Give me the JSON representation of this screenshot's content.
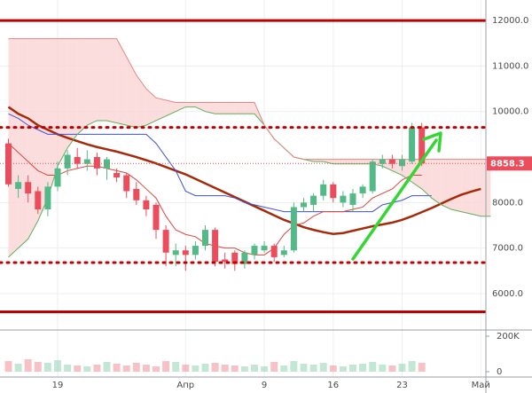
{
  "chart_data": {
    "type": "candlestick",
    "categories": [
      null,
      null,
      null,
      null,
      null,
      "19",
      null,
      null,
      null,
      null,
      null,
      null,
      null,
      null,
      null,
      null,
      null,
      null,
      "Апр",
      null,
      null,
      null,
      null,
      null,
      null,
      null,
      "9",
      null,
      null,
      null,
      null,
      null,
      null,
      "16",
      null,
      null,
      null,
      null,
      null,
      null,
      "23",
      null,
      null,
      null,
      null,
      null,
      null,
      null,
      "Май",
      null
    ],
    "open": [
      9300,
      8300,
      8450,
      8250,
      7850,
      8350,
      8750,
      9000,
      8850,
      9000,
      8750,
      8650,
      8600,
      8300,
      8050,
      7950,
      7400,
      6850,
      6950,
      6850,
      7050,
      7400,
      6750,
      6900,
      6650,
      6850,
      6950,
      7050,
      6850,
      6950,
      7900,
      7950,
      8150,
      8400,
      8000,
      7950,
      8200,
      8250,
      8850,
      8950,
      8800,
      8900,
      9650,
      null,
      null,
      null,
      null,
      null,
      null,
      null
    ],
    "high": [
      9400,
      8600,
      8600,
      8350,
      8450,
      8900,
      9150,
      9200,
      9150,
      9100,
      9000,
      8750,
      8650,
      8450,
      8150,
      8000,
      7500,
      7100,
      7050,
      7150,
      7500,
      7450,
      6900,
      6950,
      6950,
      7100,
      7150,
      7100,
      7050,
      8000,
      8100,
      8200,
      8500,
      8450,
      8250,
      8300,
      8400,
      8950,
      9050,
      9050,
      9050,
      9750,
      9750,
      null,
      null,
      null,
      null,
      null,
      null,
      null
    ],
    "low": [
      8350,
      8100,
      8000,
      7750,
      7700,
      8250,
      8600,
      8750,
      8700,
      8600,
      8500,
      8450,
      8100,
      7950,
      7700,
      7200,
      6600,
      6600,
      6500,
      6750,
      6950,
      6600,
      6550,
      6500,
      6550,
      6750,
      6900,
      6700,
      6800,
      6900,
      7800,
      7800,
      8050,
      8000,
      7900,
      7800,
      8100,
      8200,
      8750,
      8750,
      8700,
      8850,
      8800,
      null,
      null,
      null,
      null,
      null,
      null,
      null
    ],
    "close": [
      8400,
      8450,
      8200,
      7850,
      8350,
      8750,
      9050,
      8850,
      8950,
      8750,
      8950,
      8550,
      8250,
      8050,
      7850,
      7400,
      6900,
      6950,
      6850,
      7050,
      7400,
      6700,
      6700,
      6650,
      6900,
      7050,
      7050,
      6800,
      6950,
      7900,
      8000,
      8150,
      8400,
      8100,
      8150,
      8200,
      8350,
      8900,
      8950,
      8850,
      8950,
      9650,
      8860,
      null,
      null,
      null,
      null,
      null,
      null,
      null
    ],
    "up_color": "#53b987",
    "down_color": "#eb4d5c",
    "volume": [
      60000,
      45000,
      70000,
      55000,
      50000,
      65000,
      40000,
      35000,
      30000,
      40000,
      55000,
      45000,
      35000,
      50000,
      40000,
      30000,
      60000,
      55000,
      40000,
      35000,
      45000,
      50000,
      40000,
      35000,
      30000,
      40000,
      30000,
      55000,
      35000,
      60000,
      45000,
      40000,
      50000,
      35000,
      30000,
      40000,
      45000,
      55000,
      40000,
      35000,
      45000,
      60000,
      50000,
      null,
      null,
      null,
      null,
      null,
      null,
      null
    ],
    "vol_ylim": [
      0,
      215000
    ],
    "vol_yticks": [
      {
        "value": 200000,
        "label": "200K"
      },
      0
    ],
    "series": [
      {
        "color": "#a52a0a",
        "width": 2.5,
        "values": [
          10100,
          9950,
          9850,
          9700,
          9600,
          9500,
          9420,
          9350,
          9280,
          9220,
          9170,
          9120,
          9060,
          9000,
          8930,
          8860,
          8780,
          8700,
          8620,
          8520,
          8420,
          8320,
          8220,
          8120,
          8020,
          7920,
          7820,
          7720,
          7620,
          7540,
          7460,
          7400,
          7350,
          7310,
          7330,
          7380,
          7430,
          7480,
          7520,
          7560,
          7620,
          7700,
          7790,
          7880,
          7980,
          8080,
          8170,
          8240,
          8300,
          null
        ]
      },
      {
        "color": "#3f51d6",
        "width": 1,
        "values": [
          9950,
          9850,
          9700,
          9600,
          9500,
          9500,
          9500,
          9500,
          9500,
          9500,
          9500,
          9500,
          9500,
          9500,
          9500,
          9300,
          9000,
          8700,
          8250,
          8150,
          8150,
          8150,
          8150,
          8100,
          8000,
          7950,
          7900,
          7850,
          7800,
          7800,
          7800,
          7800,
          7800,
          7800,
          7800,
          7800,
          7800,
          7800,
          7950,
          8000,
          8050,
          8150,
          8150,
          8150,
          null,
          null,
          null,
          null,
          null,
          null
        ]
      },
      {
        "color": "#e0443c",
        "width": 1,
        "values": [
          9300,
          9100,
          8900,
          8700,
          8600,
          8600,
          8700,
          8750,
          8800,
          8800,
          8750,
          8700,
          8650,
          8500,
          8300,
          8100,
          7700,
          7400,
          7300,
          7250,
          7100,
          7050,
          7000,
          7000,
          6900,
          6850,
          6850,
          7000,
          7300,
          7500,
          7550,
          7700,
          7800,
          7800,
          7800,
          7850,
          7900,
          8100,
          8200,
          8300,
          8500,
          8600,
          8600,
          null,
          null,
          null,
          null,
          null,
          null,
          null
        ]
      },
      {
        "color": "#5fae5a",
        "width": 1,
        "cloud": "a",
        "values": [
          6800,
          7000,
          7200,
          7600,
          8100,
          8800,
          9200,
          9500,
          9700,
          9800,
          9800,
          9750,
          9700,
          9650,
          9700,
          9800,
          9900,
          10000,
          10100,
          10100,
          10000,
          9950,
          9950,
          9950,
          9950,
          9950,
          9700,
          9400,
          9200,
          9000,
          8950,
          8900,
          8900,
          8850,
          8850,
          8850,
          8850,
          8850,
          8800,
          8700,
          8600,
          8450,
          8300,
          8100,
          7950,
          7850,
          7800,
          7750,
          7700,
          7700
        ]
      },
      {
        "color": "#e8857e",
        "width": 1,
        "cloud": "b",
        "values": [
          11600,
          11600,
          11600,
          11600,
          11600,
          11600,
          11600,
          11600,
          11600,
          11600,
          11600,
          11600,
          11200,
          10800,
          10500,
          10300,
          10250,
          10200,
          10200,
          10200,
          10200,
          10200,
          10200,
          10200,
          10200,
          10200,
          9700,
          9400,
          9200,
          9000,
          8950,
          8950,
          8950,
          8950,
          8950,
          8950,
          8950,
          8950,
          8950,
          8950,
          8950,
          8950,
          8950,
          8950,
          8950,
          8950,
          8950,
          8950,
          8950,
          8950
        ]
      }
    ],
    "cloud_up_color": "#c8e6c0",
    "cloud_down_color": "#fbd2d2",
    "hlines": [
      {
        "value": 12000,
        "style": "solid"
      },
      {
        "value": 9650,
        "style": "dotted"
      },
      {
        "value": 6680,
        "style": "dotted"
      },
      {
        "value": 5600,
        "style": "solid"
      }
    ],
    "hline_color": "#c00000",
    "last_price": 8858.3,
    "ylim": [
      5200,
      12450
    ],
    "yticks": [
      {
        "value": 12000,
        "label": "12000.0"
      },
      {
        "value": 11000,
        "label": "11000.0"
      },
      {
        "value": 10000,
        "label": "10000.0"
      },
      {
        "value": 8000,
        "label": "8000.0"
      },
      {
        "value": 7000,
        "label": "7000.0"
      },
      {
        "value": 6000,
        "label": "6000.0"
      }
    ],
    "grid": true
  }
}
